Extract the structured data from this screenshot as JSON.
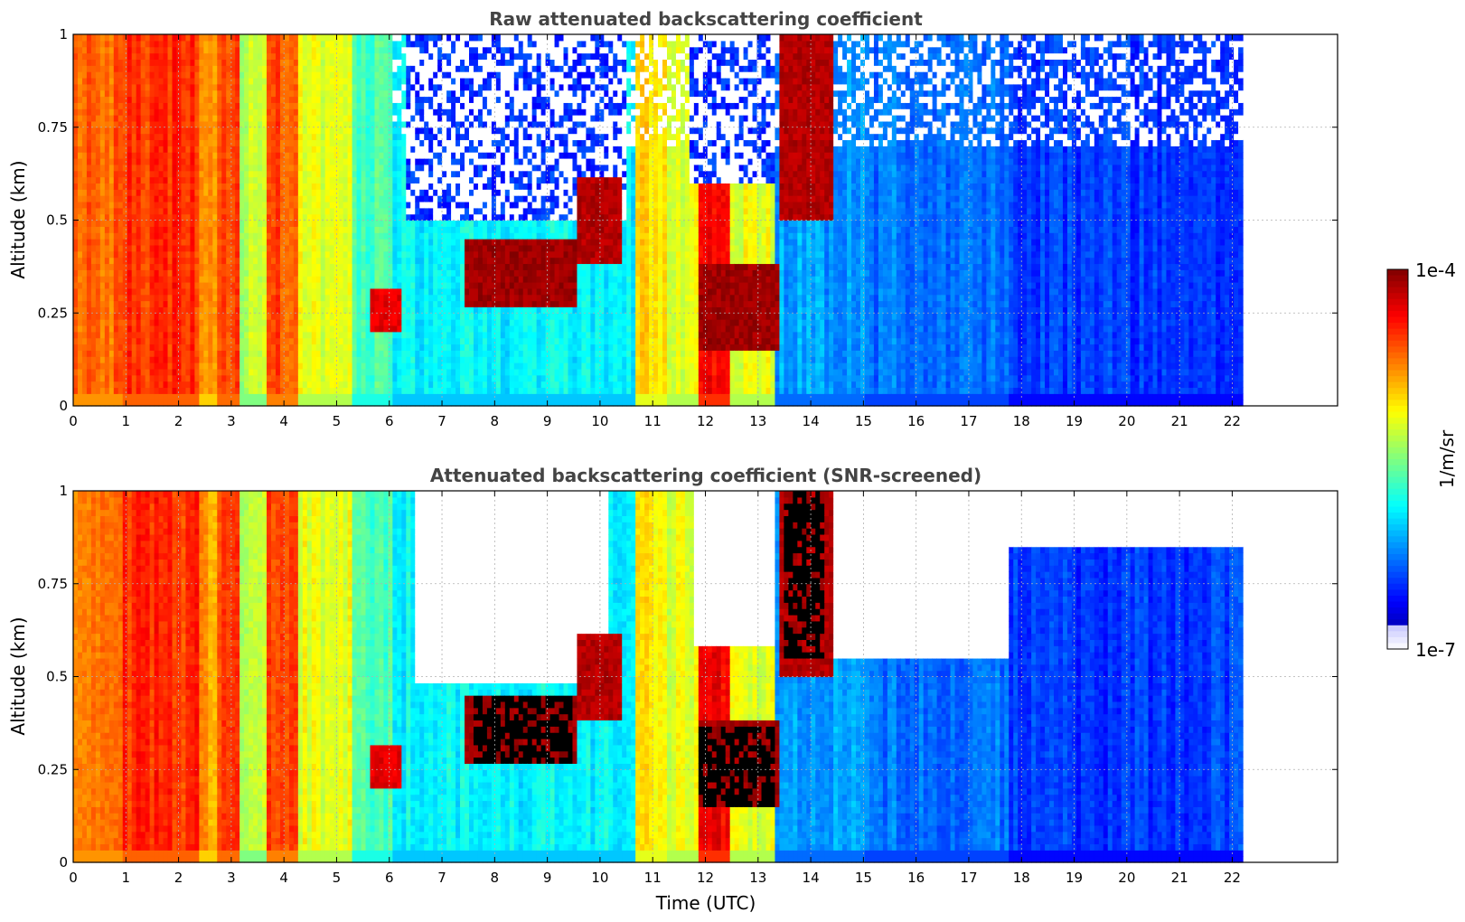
{
  "chart_data": [
    {
      "type": "heatmap",
      "title": "Raw attenuated backscattering coefficient",
      "xlabel": "",
      "ylabel": "Altitude (km)",
      "xlim": [
        0,
        24
      ],
      "ylim": [
        0,
        1
      ],
      "x_ticks": [
        "0",
        "1",
        "2",
        "3",
        "4",
        "5",
        "6",
        "7",
        "8",
        "9",
        "10",
        "11",
        "12",
        "13",
        "14",
        "15",
        "16",
        "17",
        "18",
        "19",
        "20",
        "21",
        "22"
      ],
      "y_ticks": [
        "0",
        "0.25",
        "0.5",
        "0.75",
        "1"
      ],
      "data_end_time": 22.2,
      "grid": true,
      "colorscale": "jet",
      "value_scale": "log10",
      "value_units": "1/m/sr",
      "time_segments": [
        {
          "t0": 0.0,
          "t1": 0.9,
          "v": 0.78
        },
        {
          "t0": 0.9,
          "t1": 2.4,
          "v": 0.83
        },
        {
          "t0": 2.4,
          "t1": 2.7,
          "v": 0.72
        },
        {
          "t0": 2.7,
          "t1": 3.2,
          "v": 0.82
        },
        {
          "t0": 3.2,
          "t1": 3.7,
          "v": 0.55
        },
        {
          "t0": 3.7,
          "t1": 4.3,
          "v": 0.8
        },
        {
          "t0": 4.3,
          "t1": 5.3,
          "v": 0.6
        },
        {
          "t0": 5.3,
          "t1": 6.1,
          "v": 0.45
        },
        {
          "t0": 6.1,
          "t1": 10.7,
          "v": 0.37
        },
        {
          "t0": 10.7,
          "t1": 11.3,
          "v": 0.65
        },
        {
          "t0": 11.3,
          "t1": 11.9,
          "v": 0.6
        },
        {
          "t0": 11.9,
          "t1": 12.5,
          "v": 0.88
        },
        {
          "t0": 12.5,
          "t1": 13.3,
          "v": 0.6
        },
        {
          "t0": 13.3,
          "t1": 15.0,
          "v": 0.28
        },
        {
          "t0": 15.0,
          "t1": 17.8,
          "v": 0.24
        },
        {
          "t0": 17.8,
          "t1": 22.2,
          "v": 0.18
        }
      ],
      "cloud_cells": [
        {
          "t0": 7.4,
          "t1": 9.6,
          "a0": 0.26,
          "a1": 0.45,
          "v": 0.97
        },
        {
          "t0": 9.6,
          "t1": 10.4,
          "a0": 0.38,
          "a1": 0.62,
          "v": 0.95
        },
        {
          "t0": 11.9,
          "t1": 13.4,
          "a0": 0.15,
          "a1": 0.38,
          "v": 0.97
        },
        {
          "t0": 13.4,
          "t1": 14.4,
          "a0": 0.5,
          "a1": 1.0,
          "v": 0.95
        },
        {
          "t0": 5.6,
          "t1": 6.2,
          "a0": 0.2,
          "a1": 0.32,
          "v": 0.9
        }
      ],
      "clear_regions": [
        {
          "t0": 6.3,
          "t1": 10.5,
          "a0": 0.5,
          "a1": 1.0
        },
        {
          "t0": 11.7,
          "t1": 13.3,
          "a0": 0.6,
          "a1": 1.0
        }
      ]
    },
    {
      "type": "heatmap",
      "title": "Attenuated backscattering coefficient (SNR-screened)",
      "xlabel": "Time (UTC)",
      "ylabel": "Altitude (km)",
      "xlim": [
        0,
        24
      ],
      "ylim": [
        0,
        1
      ],
      "x_ticks": [
        "0",
        "1",
        "2",
        "3",
        "4",
        "5",
        "6",
        "7",
        "8",
        "9",
        "10",
        "11",
        "12",
        "13",
        "14",
        "15",
        "16",
        "17",
        "18",
        "19",
        "20",
        "21",
        "22"
      ],
      "y_ticks": [
        "0",
        "0.25",
        "0.5",
        "0.75",
        "1"
      ],
      "data_end_time": 22.2,
      "grid": true,
      "colorscale": "jet",
      "value_scale": "log10",
      "value_units": "1/m/sr",
      "screened_regions": [
        {
          "t0": 6.5,
          "t1": 10.2,
          "a0": 0.48,
          "a1": 1.0
        },
        {
          "t0": 11.8,
          "t1": 13.3,
          "a0": 0.58,
          "a1": 1.0
        },
        {
          "t0": 14.0,
          "t1": 17.8,
          "a0": 0.55,
          "a1": 1.0
        },
        {
          "t0": 17.8,
          "t1": 22.2,
          "a0": 0.85,
          "a1": 1.0
        }
      ],
      "saturated_cells": [
        {
          "t0": 7.6,
          "t1": 9.5,
          "a0": 0.26,
          "a1": 0.45
        },
        {
          "t0": 11.9,
          "t1": 13.3,
          "a0": 0.15,
          "a1": 0.36
        },
        {
          "t0": 13.5,
          "t1": 14.3,
          "a0": 0.55,
          "a1": 1.0
        }
      ]
    }
  ],
  "colorbar": {
    "label": "1/m/sr",
    "max_label": "1e-4",
    "min_label": "1e-7",
    "max_value": 0.0001,
    "min_value": 1e-07,
    "position": "right"
  }
}
